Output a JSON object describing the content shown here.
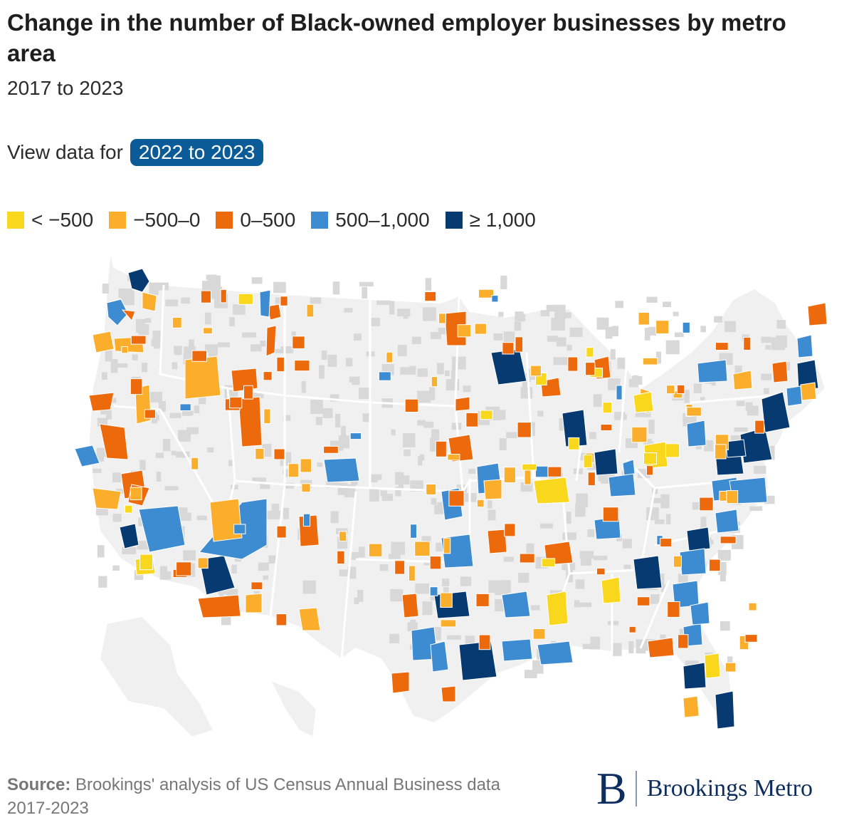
{
  "title": "Change in the number of Black-owned employer businesses by metro area",
  "subtitle": "2017 to 2023",
  "selector": {
    "label": "View data for",
    "button": "2022 to 2023"
  },
  "legend": [
    {
      "label": "< −500",
      "color": "#f9d71c"
    },
    {
      "label": "−500–0",
      "color": "#fbae2b"
    },
    {
      "label": "0–500",
      "color": "#ec6a0c"
    },
    {
      "label": "500–1,000",
      "color": "#3d8bd0"
    },
    {
      "label": "≥ 1,000",
      "color": "#063a71"
    }
  ],
  "map_colors": {
    "land": "#f0f0f0",
    "county": "#d8d8d8",
    "border": "#ffffff"
  },
  "source": {
    "label": "Source:",
    "text": "Brookings' analysis of US Census Annual Business data 2017-2023"
  },
  "logo": {
    "mark": "B",
    "text": "Brookings Metro"
  }
}
